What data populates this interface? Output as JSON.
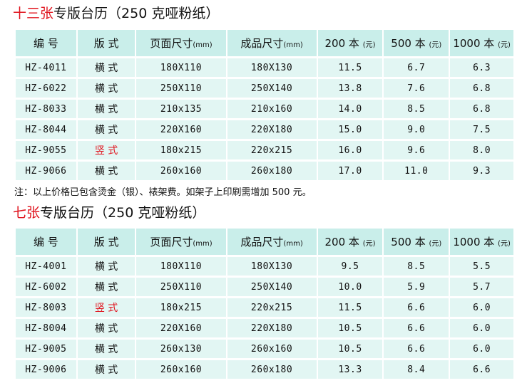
{
  "sections": [
    {
      "title_red": "十三张",
      "title_rest": "专版台历（250 克哑粉纸）",
      "headers": {
        "code": "编 号",
        "style": "版 式",
        "page_size": "页面尺寸",
        "page_size_unit": "(mm)",
        "final_size": "成品尺寸",
        "final_size_unit": "(mm)",
        "p200": "200 本",
        "p200_unit": "(元)",
        "p500": "500 本",
        "p500_unit": "(元)",
        "p1000": "1000 本",
        "p1000_unit": "(元)"
      },
      "rows": [
        {
          "code": "HZ-4011",
          "style": "横 式",
          "page": "180X110",
          "final": "180X130",
          "p200": "11.5",
          "p500": "6.7",
          "p1000": "6.3"
        },
        {
          "code": "HZ-6022",
          "style": "横 式",
          "page": "250X110",
          "final": "250X140",
          "p200": "13.8",
          "p500": "7.6",
          "p1000": "6.8"
        },
        {
          "code": "HZ-8033",
          "style": "横 式",
          "page": "210x135",
          "final": "210x160",
          "p200": "14.0",
          "p500": "8.5",
          "p1000": "6.8"
        },
        {
          "code": "HZ-8044",
          "style": "横 式",
          "page": "220X160",
          "final": "220X180",
          "p200": "15.0",
          "p500": "9.0",
          "p1000": "7.5"
        },
        {
          "code": "HZ-9055",
          "style": "竖 式",
          "page": "180x215",
          "final": "220x215",
          "p200": "16.0",
          "p500": "9.6",
          "p1000": "8.0"
        },
        {
          "code": "HZ-9066",
          "style": "横 式",
          "page": "260x160",
          "final": "260x180",
          "p200": "17.0",
          "p500": "11.0",
          "p1000": "9.3"
        }
      ]
    },
    {
      "title_red": "七张",
      "title_rest": "专版台历（250 克哑粉纸）",
      "headers": {
        "code": "编 号",
        "style": "版 式",
        "page_size": "页面尺寸",
        "page_size_unit": "(mm)",
        "final_size": "成品尺寸",
        "final_size_unit": "(mm)",
        "p200": "200 本",
        "p200_unit": "(元)",
        "p500": "500 本",
        "p500_unit": "(元)",
        "p1000": "1000 本",
        "p1000_unit": "(元)"
      },
      "rows": [
        {
          "code": "HZ-4001",
          "style": "横 式",
          "page": "180X110",
          "final": "180X130",
          "p200": "9.5",
          "p500": "8.5",
          "p1000": "5.5"
        },
        {
          "code": "HZ-6002",
          "style": "横 式",
          "page": "250X110",
          "final": "250X140",
          "p200": "10.0",
          "p500": "5.9",
          "p1000": "5.7"
        },
        {
          "code": "HZ-8003",
          "style": "竖 式",
          "page": "180x215",
          "final": "220x215",
          "p200": "11.5",
          "p500": "6.6",
          "p1000": "6.0"
        },
        {
          "code": "HZ-8004",
          "style": "横 式",
          "page": "220X160",
          "final": "220X180",
          "p200": "10.5",
          "p500": "6.6",
          "p1000": "6.0"
        },
        {
          "code": "HZ-9005",
          "style": "横 式",
          "page": "260x130",
          "final": "260x160",
          "p200": "10.5",
          "p500": "6.6",
          "p1000": "6.0"
        },
        {
          "code": "HZ-9006",
          "style": "横 式",
          "page": "260x160",
          "final": "260x180",
          "p200": "13.3",
          "p500": "8.4",
          "p1000": "6.6"
        }
      ]
    }
  ],
  "note": "注：以上价格已包含烫金（银）、裱架费。如架子上印刷需增加 500 元。",
  "colors": {
    "header_bg": "#c9eeea",
    "cell_bg": "#e2f6f3",
    "highlight_red": "#e0141e"
  }
}
